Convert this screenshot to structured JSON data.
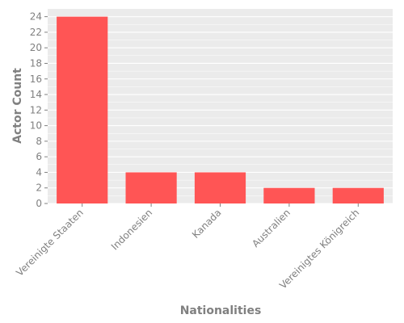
{
  "chart_data": {
    "type": "bar",
    "title": "",
    "xlabel": "Nationalities",
    "ylabel": "Actor Count",
    "categories": [
      "Vereinigte Staaten",
      "Indonesien",
      "Kanada",
      "Australien",
      "Vereinigtes Königreich"
    ],
    "values": [
      24,
      4,
      4,
      2,
      2
    ],
    "ylim": [
      0,
      25
    ],
    "yticks": [
      0,
      2,
      4,
      6,
      8,
      10,
      12,
      14,
      16,
      18,
      20,
      22,
      24
    ],
    "grid": true,
    "legend": "none"
  },
  "colors": {
    "bar": "#ff5555",
    "panel": "#ebebeb",
    "grid": "#ffffff",
    "text": "#808080"
  }
}
